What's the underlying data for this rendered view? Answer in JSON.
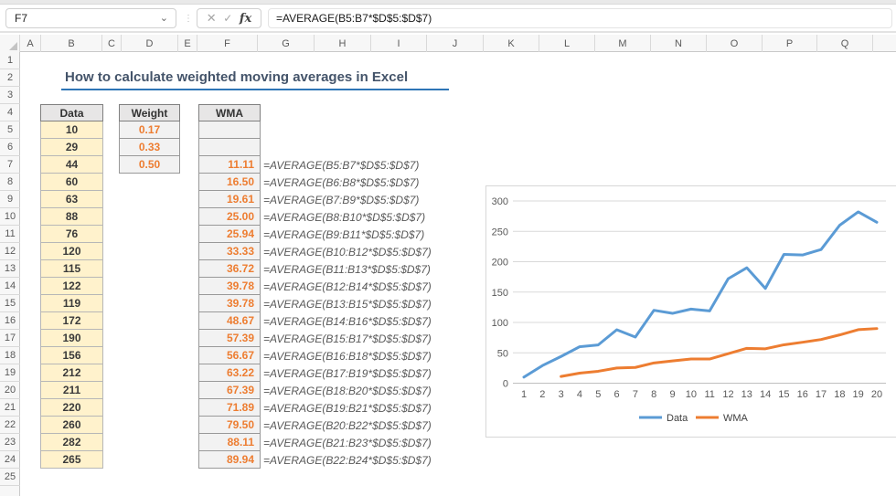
{
  "formula_bar": {
    "name_box_value": "F7",
    "cancel_icon": "✕",
    "enter_icon": "✓",
    "fx_label": "fx",
    "formula": "=AVERAGE(B5:B7*$D$5:$D$7)"
  },
  "grid": {
    "column_labels": [
      "A",
      "B",
      "C",
      "D",
      "E",
      "F",
      "G",
      "H",
      "I",
      "J",
      "K",
      "L",
      "M",
      "N",
      "O",
      "P",
      "Q"
    ],
    "visible_rows": 25
  },
  "sheet": {
    "title": "How to calculate weighted moving averages in Excel",
    "tables": {
      "data": {
        "header": "Data",
        "start_row": 5,
        "values": [
          "10",
          "29",
          "44",
          "60",
          "63",
          "88",
          "76",
          "120",
          "115",
          "122",
          "119",
          "172",
          "190",
          "156",
          "212",
          "211",
          "220",
          "260",
          "282",
          "265"
        ]
      },
      "weight": {
        "header": "Weight",
        "start_row": 5,
        "values": [
          "0.17",
          "0.33",
          "0.50"
        ]
      },
      "wma": {
        "header": "WMA",
        "empty_rows": 2,
        "start_row": 7,
        "values": [
          "11.11",
          "16.50",
          "19.61",
          "25.00",
          "25.94",
          "33.33",
          "36.72",
          "39.78",
          "39.78",
          "48.67",
          "57.39",
          "56.67",
          "63.22",
          "67.39",
          "71.89",
          "79.50",
          "88.11",
          "89.94"
        ]
      },
      "formula_annotations": {
        "start_row": 7,
        "values": [
          "=AVERAGE(B5:B7*$D$5:$D$7)",
          "=AVERAGE(B6:B8*$D$5:$D$7)",
          "=AVERAGE(B7:B9*$D$5:$D$7)",
          "=AVERAGE(B8:B10*$D$5:$D$7)",
          "=AVERAGE(B9:B11*$D$5:$D$7)",
          "=AVERAGE(B10:B12*$D$5:$D$7)",
          "=AVERAGE(B11:B13*$D$5:$D$7)",
          "=AVERAGE(B12:B14*$D$5:$D$7)",
          "=AVERAGE(B13:B15*$D$5:$D$7)",
          "=AVERAGE(B14:B16*$D$5:$D$7)",
          "=AVERAGE(B15:B17*$D$5:$D$7)",
          "=AVERAGE(B16:B18*$D$5:$D$7)",
          "=AVERAGE(B17:B19*$D$5:$D$7)",
          "=AVERAGE(B18:B20*$D$5:$D$7)",
          "=AVERAGE(B19:B21*$D$5:$D$7)",
          "=AVERAGE(B20:B22*$D$5:$D$7)",
          "=AVERAGE(B21:B23*$D$5:$D$7)",
          "=AVERAGE(B22:B24*$D$5:$D$7)"
        ]
      }
    },
    "colors": {
      "title_text": "#44546a",
      "title_underline": "#2e75b6",
      "data_fill": "#fff2cc",
      "accent_orange": "#ed7d31",
      "header_fill": "#e7e6e6"
    }
  },
  "chart_data": {
    "type": "line",
    "x": [
      1,
      2,
      3,
      4,
      5,
      6,
      7,
      8,
      9,
      10,
      11,
      12,
      13,
      14,
      15,
      16,
      17,
      18,
      19,
      20
    ],
    "series": [
      {
        "name": "Data",
        "color": "#5b9bd5",
        "start_x": 1,
        "values": [
          10,
          29,
          44,
          60,
          63,
          88,
          76,
          120,
          115,
          122,
          119,
          172,
          190,
          156,
          212,
          211,
          220,
          260,
          282,
          265
        ]
      },
      {
        "name": "WMA",
        "color": "#ed7d31",
        "start_x": 3,
        "values": [
          11.11,
          16.5,
          19.61,
          25.0,
          25.94,
          33.33,
          36.72,
          39.78,
          39.78,
          48.67,
          57.39,
          56.67,
          63.22,
          67.39,
          71.89,
          79.5,
          88.11,
          89.94
        ]
      }
    ],
    "title": "",
    "xlabel": "",
    "ylabel": "",
    "ylim": [
      0,
      300
    ],
    "ytick_step": 50,
    "grid": true,
    "legend_position": "bottom",
    "gridline_color": "#d9d9d9",
    "axis_label_color": "#595959"
  }
}
